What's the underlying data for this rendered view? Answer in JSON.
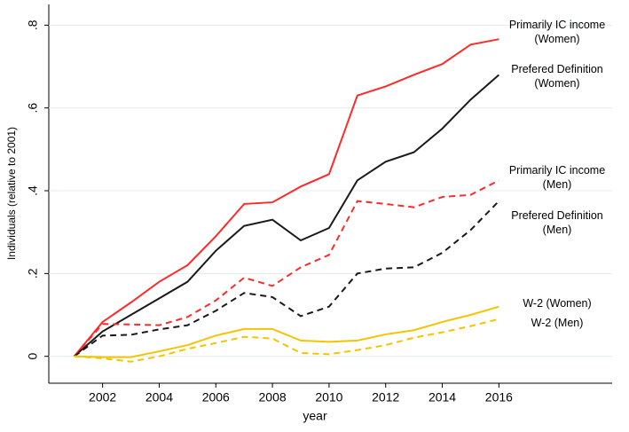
{
  "chart_data": {
    "type": "line",
    "x_label": "year",
    "y_label": "Individuals (relative to 2001)",
    "x": [
      2001,
      2002,
      2003,
      2004,
      2005,
      2006,
      2007,
      2008,
      2009,
      2010,
      2011,
      2012,
      2013,
      2014,
      2015,
      2016
    ],
    "series": [
      {
        "name": "Primarily IC income\n(Women)",
        "color": "#ff2a2a",
        "dashed": false,
        "values": [
          0,
          0.083,
          0.13,
          0.18,
          0.22,
          0.29,
          0.368,
          0.372,
          0.41,
          0.44,
          0.63,
          0.652,
          0.68,
          0.706,
          0.753,
          0.766
        ]
      },
      {
        "name": "Prefered Definition\n(Women)",
        "color": "#1a1a1a",
        "dashed": false,
        "values": [
          0,
          0.06,
          0.1,
          0.14,
          0.18,
          0.255,
          0.315,
          0.33,
          0.28,
          0.31,
          0.425,
          0.47,
          0.493,
          0.55,
          0.62,
          0.68
        ]
      },
      {
        "name": "Primarily IC income\n(Men)",
        "color": "#ff2a2a",
        "dashed": true,
        "values": [
          0,
          0.078,
          0.077,
          0.075,
          0.095,
          0.135,
          0.19,
          0.17,
          0.215,
          0.245,
          0.375,
          0.368,
          0.36,
          0.385,
          0.39,
          0.425
        ]
      },
      {
        "name": "Prefered Definition\n(Men)",
        "color": "#1a1a1a",
        "dashed": true,
        "values": [
          0,
          0.05,
          0.052,
          0.065,
          0.075,
          0.11,
          0.153,
          0.143,
          0.097,
          0.12,
          0.2,
          0.212,
          0.215,
          0.25,
          0.305,
          0.375
        ]
      },
      {
        "name": "W-2 (Women)",
        "color": "#f5c400",
        "dashed": false,
        "values": [
          0,
          -0.002,
          -0.002,
          0.012,
          0.027,
          0.05,
          0.066,
          0.066,
          0.038,
          0.035,
          0.038,
          0.053,
          0.063,
          0.083,
          0.1,
          0.12
        ]
      },
      {
        "name": "W-2 (Men)",
        "color": "#f5c400",
        "dashed": true,
        "values": [
          0,
          -0.005,
          -0.013,
          0.0,
          0.018,
          0.032,
          0.047,
          0.043,
          0.008,
          0.005,
          0.015,
          0.027,
          0.045,
          0.058,
          0.073,
          0.09
        ]
      }
    ],
    "xlim": [
      2000.1,
      2020
    ],
    "xticks": [
      2002,
      2004,
      2006,
      2008,
      2010,
      2012,
      2014,
      2016
    ],
    "ylim": [
      -0.065,
      0.85
    ],
    "yticks": [
      0,
      {
        "value": 0.2,
        "label": ".2"
      },
      {
        "value": 0.4,
        "label": ".4"
      },
      {
        "value": 0.6,
        "label": ".6"
      },
      {
        "value": 0.8,
        "label": ".8"
      }
    ],
    "grid": true
  }
}
